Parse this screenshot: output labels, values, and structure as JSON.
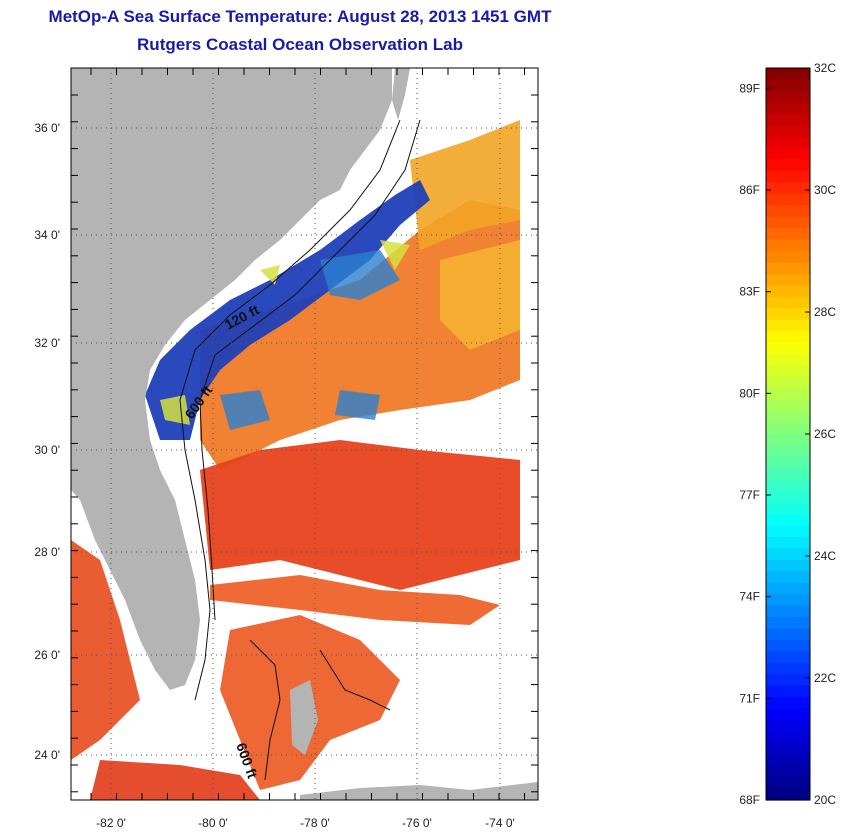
{
  "title": {
    "line1": "MetOp-A Sea Surface Temperature:  August 28, 2013 1451 GMT",
    "line2": "Rutgers Coastal Ocean Observation Lab"
  },
  "map": {
    "lon_ticks": [
      "-82 0'",
      "-80 0'",
      "-78 0'",
      "-76 0'",
      "-74 0'"
    ],
    "lat_ticks": [
      "36 0'",
      "34 0'",
      "32 0'",
      "30 0'",
      "28 0'",
      "26 0'",
      "24 0'"
    ],
    "contour_labels": [
      "120 ft",
      "600 ft",
      "600 ft"
    ],
    "colors": {
      "land": "#b4b4b4",
      "cloud": "#ffffff",
      "warm": "#f06a1e",
      "hot": "#e8301a",
      "cool": "#1838b0",
      "mid": "#f0a020"
    }
  },
  "colorbar": {
    "celsius_labels": [
      "32C",
      "30C",
      "28C",
      "26C",
      "24C",
      "22C",
      "20C"
    ],
    "fahrenheit_labels": [
      "89F",
      "86F",
      "83F",
      "80F",
      "77F",
      "74F",
      "71F",
      "68F"
    ],
    "range_c": [
      20,
      32
    ],
    "colormap": "jet"
  }
}
